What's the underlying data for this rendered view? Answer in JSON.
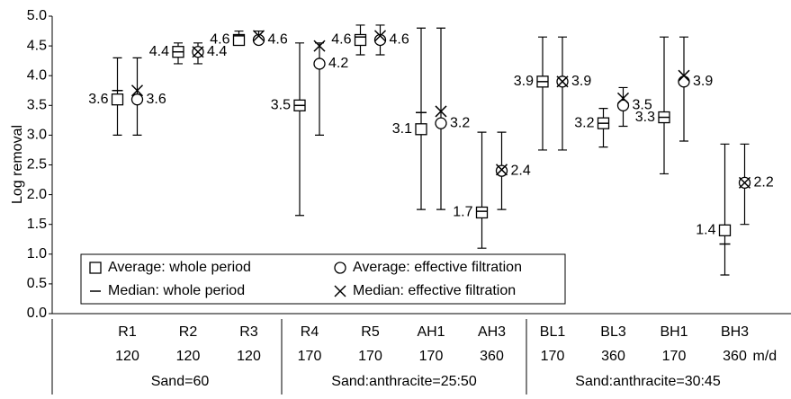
{
  "chart_data": {
    "type": "errorbar",
    "y_label": "Log removal",
    "categories": [
      "R1",
      "R2",
      "R3",
      "R4",
      "R5",
      "AH1",
      "AH3",
      "BL1",
      "BL3",
      "BH1",
      "BH3"
    ],
    "rates": [
      "120",
      "120",
      "120",
      "170",
      "170",
      "170",
      "360",
      "170",
      "360",
      "170",
      "360"
    ],
    "rate_unit": "m/d",
    "groups": [
      "Sand=60",
      "Sand:anthracite=25:50",
      "Sand:anthracite=30:45"
    ],
    "ylim": [
      0,
      5
    ],
    "yticks": [
      {
        "value": 0,
        "label": "0.0"
      },
      0.5,
      {
        "value": 1,
        "label": "1.0"
      },
      1.5,
      {
        "value": 2,
        "label": "2.0"
      },
      2.5,
      {
        "value": 3,
        "label": "3.0"
      },
      3.5,
      {
        "value": 4,
        "label": "4.0"
      },
      4.5,
      {
        "value": 5,
        "label": "5.0"
      }
    ],
    "series": [
      {
        "name": "Average: whole period",
        "marker": "square",
        "color": "#000000",
        "values": [
          3.6,
          4.4,
          4.6,
          3.5,
          4.6,
          3.1,
          1.7,
          3.9,
          3.2,
          3.3,
          1.4
        ],
        "low": [
          3.0,
          4.2,
          4.6,
          1.65,
          4.35,
          1.75,
          1.1,
          2.75,
          2.8,
          2.35,
          0.65
        ],
        "high": [
          4.3,
          4.55,
          4.75,
          4.55,
          4.85,
          4.8,
          3.05,
          4.65,
          3.45,
          4.65,
          2.85
        ]
      },
      {
        "name": "Average: effective filtration",
        "marker": "circle",
        "color": "#000000",
        "values": [
          3.6,
          4.4,
          4.6,
          4.2,
          4.6,
          3.2,
          2.4,
          3.9,
          3.5,
          3.9,
          2.2
        ],
        "low": [
          3.0,
          4.2,
          4.6,
          3.0,
          4.35,
          1.75,
          1.75,
          2.75,
          3.15,
          2.9,
          1.5
        ],
        "high": [
          4.3,
          4.55,
          4.75,
          4.55,
          4.85,
          4.8,
          3.05,
          4.65,
          3.8,
          4.65,
          2.85
        ]
      },
      {
        "name": "Median: whole period",
        "marker": "dash",
        "color": "#000000",
        "values": [
          3.75,
          4.4,
          4.67,
          3.5,
          4.65,
          3.38,
          1.72,
          3.9,
          3.2,
          3.3,
          1.17
        ]
      },
      {
        "name": "Median: effective filtration",
        "marker": "x",
        "color": "#000000",
        "values": [
          3.75,
          4.4,
          4.67,
          4.5,
          4.67,
          3.4,
          2.42,
          3.9,
          3.62,
          4.0,
          2.2
        ]
      }
    ]
  }
}
